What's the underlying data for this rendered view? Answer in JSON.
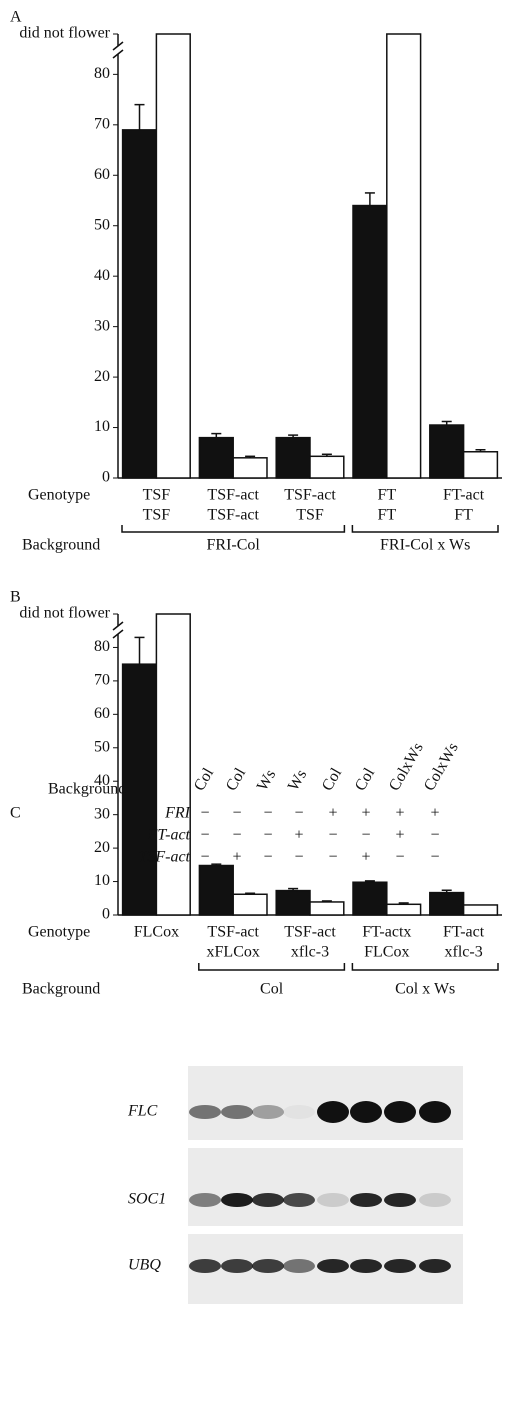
{
  "chart_data": [
    {
      "type": "bar",
      "panel": "A",
      "genotype_label": "Genotype",
      "background_label": "Background",
      "categories": [
        [
          "TSF",
          "TSF"
        ],
        [
          "TSF-act",
          "TSF-act"
        ],
        [
          "TSF-act",
          "TSF"
        ],
        [
          "FT",
          "FT"
        ],
        [
          "FT-act",
          "FT"
        ]
      ],
      "backgrounds": [
        "FRI-Col",
        "FRI-Col",
        "FRI-Col",
        "FRI-Col x Ws",
        "FRI-Col x Ws"
      ],
      "series": [
        {
          "color": "#111111",
          "values": [
            69,
            8,
            8,
            54,
            10.5
          ],
          "errors": [
            5,
            0.8,
            0.5,
            2.5,
            0.7
          ]
        },
        {
          "color": "#ffffff",
          "values": [
            null,
            4,
            4.3,
            null,
            5.2
          ],
          "errors": [
            null,
            0.3,
            0.4,
            null,
            0.4
          ],
          "off_scale": [
            true,
            false,
            false,
            true,
            false
          ]
        }
      ],
      "ylim": [
        0,
        88
      ],
      "yticks": [
        0,
        10,
        20,
        30,
        40,
        50,
        60,
        70,
        80,
        {
          "value": 88,
          "label": "did not flower"
        }
      ]
    },
    {
      "type": "bar",
      "panel": "B",
      "genotype_label": "Genotype",
      "background_label": "Background",
      "categories": [
        [
          "FLCox"
        ],
        [
          "TSF-act",
          "xFLCox"
        ],
        [
          "TSF-act",
          "xflc-3"
        ],
        [
          "FT-actx",
          "FLCox"
        ],
        [
          "FT-act",
          "xflc-3"
        ]
      ],
      "backgrounds": [
        null,
        "Col",
        "Col",
        "Col x Ws",
        "Col x Ws"
      ],
      "series": [
        {
          "color": "#111111",
          "values": [
            75,
            14.8,
            7.3,
            9.8,
            6.7
          ],
          "errors": [
            8,
            0.4,
            0.6,
            0.4,
            0.7
          ]
        },
        {
          "color": "#ffffff",
          "values": [
            null,
            6.2,
            3.9,
            3.2,
            3
          ],
          "errors": [
            null,
            0.3,
            0.3,
            0.4,
            null
          ],
          "off_scale": [
            true,
            false,
            false,
            false,
            false
          ]
        }
      ],
      "ylim": [
        0,
        90
      ],
      "yticks": [
        0,
        10,
        20,
        30,
        40,
        50,
        60,
        70,
        80,
        {
          "value": 90,
          "label": "did not flower"
        }
      ]
    }
  ],
  "blot": {
    "panel": "C",
    "background_label": "Background",
    "lanes": [
      "Col",
      "Col",
      "Ws",
      "Ws",
      "Col",
      "Col",
      "ColxWs",
      "ColxWs"
    ],
    "rows": [
      {
        "label": "FRI",
        "signs": [
          "−",
          "−",
          "−",
          "−",
          "+",
          "+",
          "+",
          "+"
        ]
      },
      {
        "label": "FT-act",
        "signs": [
          "−",
          "−",
          "−",
          "+",
          "−",
          "−",
          "+",
          "−"
        ]
      },
      {
        "label": "TSF-act",
        "signs": [
          "−",
          "+",
          "−",
          "−",
          "−",
          "+",
          "−",
          "−"
        ]
      }
    ],
    "genes": [
      "FLC",
      "SOC1",
      "UBQ"
    ]
  }
}
